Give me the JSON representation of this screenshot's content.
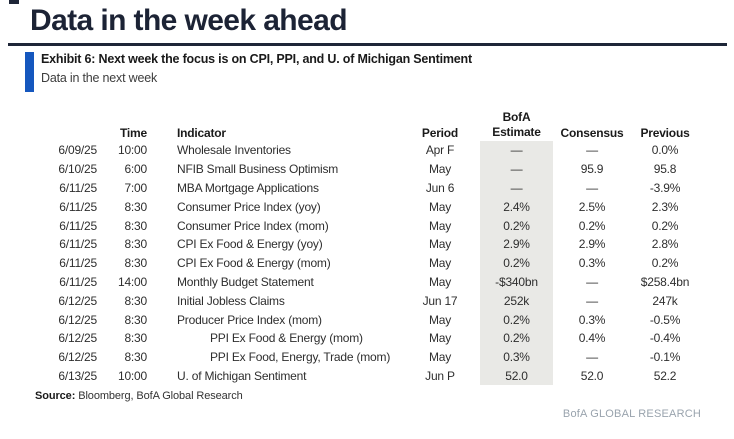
{
  "page": {
    "title": "Data in the week ahead",
    "brand_footer": "BofA GLOBAL RESEARCH",
    "colors": {
      "title_navy": "#1C2335",
      "rule_navy": "#1E2638",
      "accent_blue": "#1557BE",
      "estimate_column_bg": "#E9E9E6",
      "body_text": "#2E2E2E",
      "brand_gray": "#99A3AD"
    }
  },
  "exhibit": {
    "title": "Exhibit 6: Next week the focus is on CPI, PPI, and U. of Michigan Sentiment",
    "subtitle": "Data in the next week"
  },
  "table": {
    "headers": {
      "date": "",
      "time": "Time",
      "indicator": "Indicator",
      "period": "Period",
      "estimate_line1": "BofA",
      "estimate_line2": "Estimate",
      "consensus": "Consensus",
      "previous": "Previous"
    },
    "rows": [
      {
        "date": "6/09/25",
        "time": "10:00",
        "indicator": "Wholesale Inventories",
        "period": "Apr F",
        "estimate": "—",
        "consensus": "—",
        "previous": "0.0%",
        "indent": false
      },
      {
        "date": "6/10/25",
        "time": "6:00",
        "indicator": "NFIB Small Business Optimism",
        "period": "May",
        "estimate": "—",
        "consensus": "95.9",
        "previous": "95.8",
        "indent": false
      },
      {
        "date": "6/11/25",
        "time": "7:00",
        "indicator": "MBA Mortgage Applications",
        "period": "Jun 6",
        "estimate": "—",
        "consensus": "—",
        "previous": "-3.9%",
        "indent": false
      },
      {
        "date": "6/11/25",
        "time": "8:30",
        "indicator": "Consumer Price Index (yoy)",
        "period": "May",
        "estimate": "2.4%",
        "consensus": "2.5%",
        "previous": "2.3%",
        "indent": false
      },
      {
        "date": "6/11/25",
        "time": "8:30",
        "indicator": "Consumer Price Index (mom)",
        "period": "May",
        "estimate": "0.2%",
        "consensus": "0.2%",
        "previous": "0.2%",
        "indent": false
      },
      {
        "date": "6/11/25",
        "time": "8:30",
        "indicator": "CPI Ex Food & Energy (yoy)",
        "period": "May",
        "estimate": "2.9%",
        "consensus": "2.9%",
        "previous": "2.8%",
        "indent": false
      },
      {
        "date": "6/11/25",
        "time": "8:30",
        "indicator": "CPI Ex Food & Energy (mom)",
        "period": "May",
        "estimate": "0.2%",
        "consensus": "0.3%",
        "previous": "0.2%",
        "indent": false
      },
      {
        "date": "6/11/25",
        "time": "14:00",
        "indicator": "Monthly Budget Statement",
        "period": "May",
        "estimate": "-$340bn",
        "consensus": "—",
        "previous": "$258.4bn",
        "indent": false
      },
      {
        "date": "6/12/25",
        "time": "8:30",
        "indicator": "Initial Jobless Claims",
        "period": "Jun 17",
        "estimate": "252k",
        "consensus": "—",
        "previous": "247k",
        "indent": false
      },
      {
        "date": "6/12/25",
        "time": "8:30",
        "indicator": "Producer Price Index (mom)",
        "period": "May",
        "estimate": "0.2%",
        "consensus": "0.3%",
        "previous": "-0.5%",
        "indent": false
      },
      {
        "date": "6/12/25",
        "time": "8:30",
        "indicator": "PPI Ex Food & Energy (mom)",
        "period": "May",
        "estimate": "0.2%",
        "consensus": "0.4%",
        "previous": "-0.4%",
        "indent": true
      },
      {
        "date": "6/12/25",
        "time": "8:30",
        "indicator": "PPI Ex Food, Energy, Trade (mom)",
        "period": "May",
        "estimate": "0.3%",
        "consensus": "—",
        "previous": "-0.1%",
        "indent": true
      },
      {
        "date": "6/13/25",
        "time": "10:00",
        "indicator": "U. of Michigan Sentiment",
        "period": "Jun P",
        "estimate": "52.0",
        "consensus": "52.0",
        "previous": "52.2",
        "indent": false
      }
    ]
  },
  "source": {
    "label": "Source:",
    "text": " Bloomberg, BofA Global Research"
  }
}
